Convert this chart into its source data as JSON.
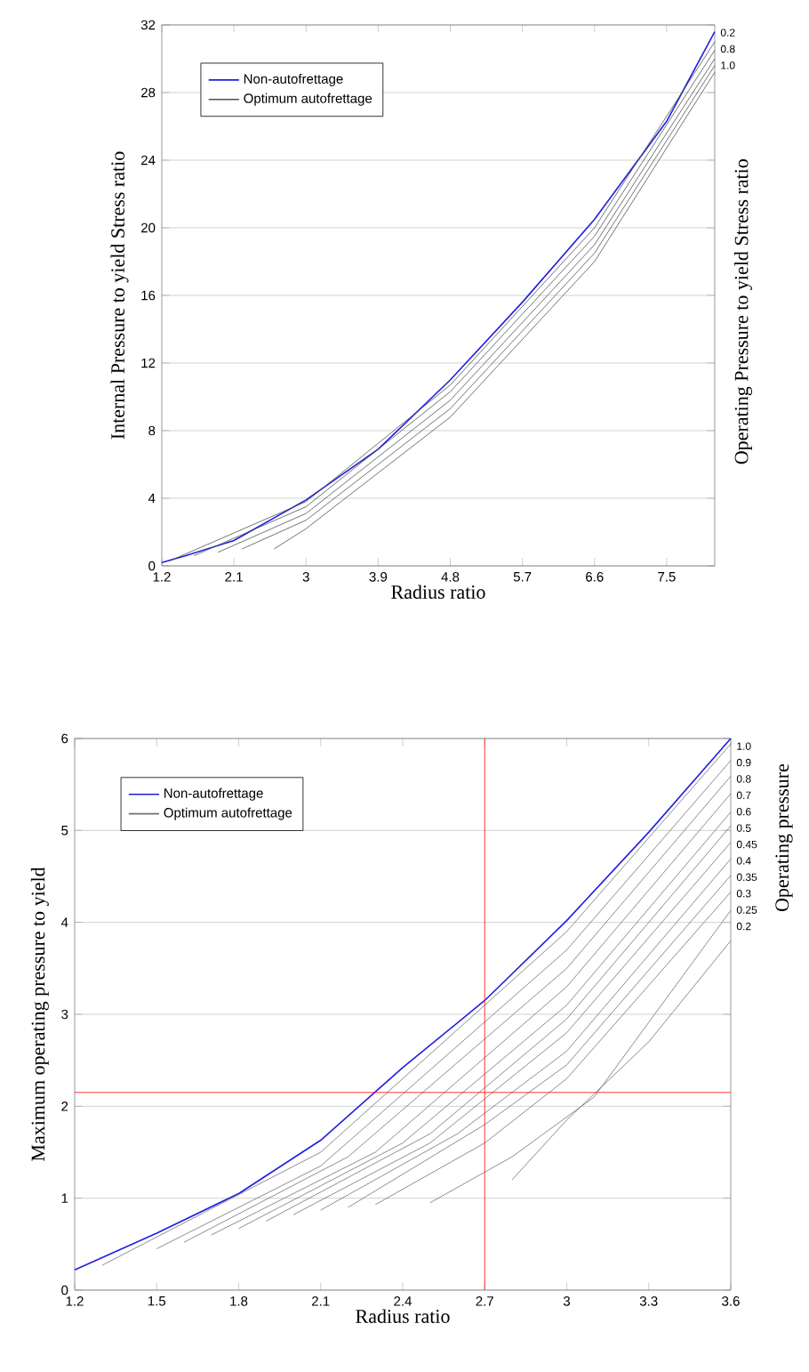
{
  "chart_data": [
    {
      "type": "line",
      "xlabel": "Radius ratio",
      "ylabel": "Internal Pressure to yield Stress ratio",
      "y2label": "Operating Pressure to yield Stress ratio",
      "xlim": [
        1.2,
        8.1
      ],
      "xticks": [
        1.2,
        2.1,
        3,
        3.9,
        4.8,
        5.7,
        6.6,
        7.5
      ],
      "ylim": [
        0,
        32
      ],
      "yticks": [
        0,
        4,
        8,
        12,
        16,
        20,
        24,
        28,
        32
      ],
      "grid": "y",
      "legend": "top left",
      "series": [
        {
          "name": "Non-autofrettage",
          "color": "#1f1fe0",
          "x": [
            1.2,
            1.5,
            2.1,
            3.0,
            3.9,
            4.8,
            5.7,
            6.6,
            7.5,
            8.1
          ],
          "values": [
            0.2,
            0.6,
            1.5,
            3.9,
            6.9,
            11.0,
            15.6,
            20.5,
            26.3,
            31.6
          ]
        },
        {
          "name": "Optimum autofrettage",
          "color": "#505050",
          "x": [
            1.3,
            3.0,
            4.8,
            6.6,
            8.1
          ],
          "values": [
            0.3,
            3.8,
            10.7,
            20.0,
            31.0
          ]
        },
        {
          "color": "#505050",
          "x": [
            1.6,
            3.0,
            4.8,
            6.6,
            8.1
          ],
          "values": [
            0.6,
            3.5,
            10.3,
            19.5,
            30.5
          ]
        },
        {
          "color": "#505050",
          "x": [
            1.9,
            3.0,
            4.8,
            6.6,
            8.1
          ],
          "values": [
            0.8,
            3.1,
            9.8,
            19.0,
            30.0
          ]
        },
        {
          "color": "#505050",
          "x": [
            2.2,
            3.0,
            4.8,
            6.6,
            8.1
          ],
          "values": [
            1.0,
            2.7,
            9.3,
            18.5,
            29.6
          ]
        },
        {
          "color": "#505050",
          "x": [
            2.6,
            3.0,
            4.8,
            6.6,
            8.1
          ],
          "values": [
            1.0,
            2.2,
            8.8,
            18.0,
            29.2
          ]
        }
      ],
      "annotations": [
        "0.2",
        "0.8",
        "1.0"
      ]
    },
    {
      "type": "line",
      "xlabel": "Radius ratio",
      "ylabel": "Maximum operating pressure to yield",
      "y2label": "Operating pressure",
      "xlim": [
        1.2,
        3.6
      ],
      "xticks": [
        1.2,
        1.5,
        1.8,
        2.1,
        2.4,
        2.7,
        3,
        3.3,
        3.6
      ],
      "ylim": [
        0,
        6
      ],
      "yticks": [
        0,
        1,
        2,
        3,
        4,
        5,
        6
      ],
      "grid": "y",
      "legend": "top left",
      "series": [
        {
          "name": "Non-autofrettage",
          "color": "#1f1fe0",
          "x": [
            1.2,
            1.5,
            1.8,
            2.1,
            2.4,
            2.7,
            3.0,
            3.3,
            3.6
          ],
          "values": [
            0.22,
            0.62,
            1.05,
            1.63,
            2.42,
            3.15,
            4.02,
            4.98,
            6.0
          ]
        },
        {
          "name": "Optimum autofrettage",
          "color": "#707070",
          "x": [
            1.3,
            2.1,
            3.0,
            3.6
          ],
          "values": [
            0.27,
            1.5,
            3.9,
            5.94
          ]
        },
        {
          "color": "#707070",
          "x": [
            1.5,
            2.1,
            3.0,
            3.6
          ],
          "values": [
            0.45,
            1.35,
            3.7,
            5.76
          ]
        },
        {
          "color": "#707070",
          "x": [
            1.6,
            2.2,
            3.0,
            3.6
          ],
          "values": [
            0.52,
            1.45,
            3.5,
            5.59
          ]
        },
        {
          "color": "#707070",
          "x": [
            1.7,
            2.3,
            3.0,
            3.6
          ],
          "values": [
            0.6,
            1.5,
            3.3,
            5.4
          ]
        },
        {
          "color": "#707070",
          "x": [
            1.8,
            2.4,
            3.0,
            3.6
          ],
          "values": [
            0.67,
            1.6,
            3.1,
            5.2
          ]
        },
        {
          "color": "#707070",
          "x": [
            1.9,
            2.5,
            3.0,
            3.6
          ],
          "values": [
            0.75,
            1.7,
            2.95,
            5.05
          ]
        },
        {
          "color": "#707070",
          "x": [
            2.0,
            2.5,
            3.0,
            3.6
          ],
          "values": [
            0.82,
            1.6,
            2.8,
            4.87
          ]
        },
        {
          "color": "#707070",
          "x": [
            2.1,
            2.6,
            3.0,
            3.6
          ],
          "values": [
            0.87,
            1.7,
            2.6,
            4.69
          ]
        },
        {
          "color": "#707070",
          "x": [
            2.2,
            2.7,
            3.0,
            3.6
          ],
          "values": [
            0.9,
            1.8,
            2.45,
            4.51
          ]
        },
        {
          "color": "#707070",
          "x": [
            2.3,
            2.7,
            3.0,
            3.6
          ],
          "values": [
            0.93,
            1.6,
            2.3,
            4.33
          ]
        },
        {
          "color": "#707070",
          "x": [
            2.5,
            2.8,
            3.1,
            3.6
          ],
          "values": [
            0.95,
            1.45,
            2.1,
            4.13
          ]
        },
        {
          "color": "#707070",
          "x": [
            2.8,
            3.0,
            3.3,
            3.6
          ],
          "values": [
            1.2,
            1.85,
            2.7,
            3.8
          ]
        }
      ],
      "ref_lines": [
        {
          "axis": "x",
          "value": 2.7,
          "color": "#ff0000"
        },
        {
          "axis": "y",
          "value": 2.15,
          "color": "#ff0000"
        }
      ],
      "annotations": [
        "1.0",
        "0.9",
        "0.8",
        "0.7",
        "0.6",
        "0.5",
        "0.45",
        "0.4",
        "0.35",
        "0.3",
        "0.25",
        "0.2"
      ]
    }
  ]
}
